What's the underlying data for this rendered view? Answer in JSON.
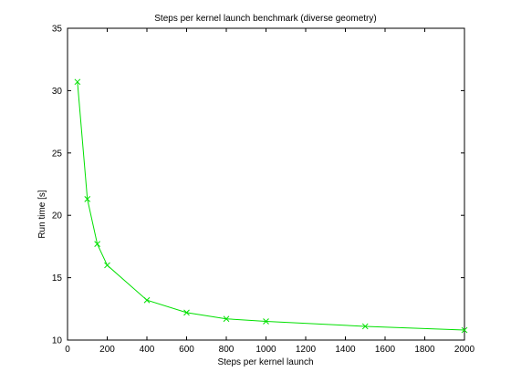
{
  "figure": {
    "background": "#ffffff",
    "axes_color": "#000000",
    "series_color": "#00e000"
  },
  "chart_data": {
    "type": "line",
    "title": "Steps per kernel launch benchmark (diverse geometry)",
    "xlabel": "Steps per kernel launch",
    "ylabel": "Run time [s]",
    "xlim": [
      0,
      2000
    ],
    "ylim": [
      10,
      35
    ],
    "xticks": [
      0,
      200,
      400,
      600,
      800,
      1000,
      1200,
      1400,
      1600,
      1800,
      2000
    ],
    "yticks": [
      10,
      15,
      20,
      25,
      30,
      35
    ],
    "grid": false,
    "legend": "none",
    "marker": "x",
    "series": [
      {
        "x": [
          50,
          100,
          150,
          200,
          400,
          600,
          800,
          1000,
          1500,
          2000
        ],
        "values": [
          30.7,
          21.3,
          17.7,
          16.0,
          13.2,
          12.2,
          11.7,
          11.5,
          11.1,
          10.8
        ]
      }
    ]
  }
}
